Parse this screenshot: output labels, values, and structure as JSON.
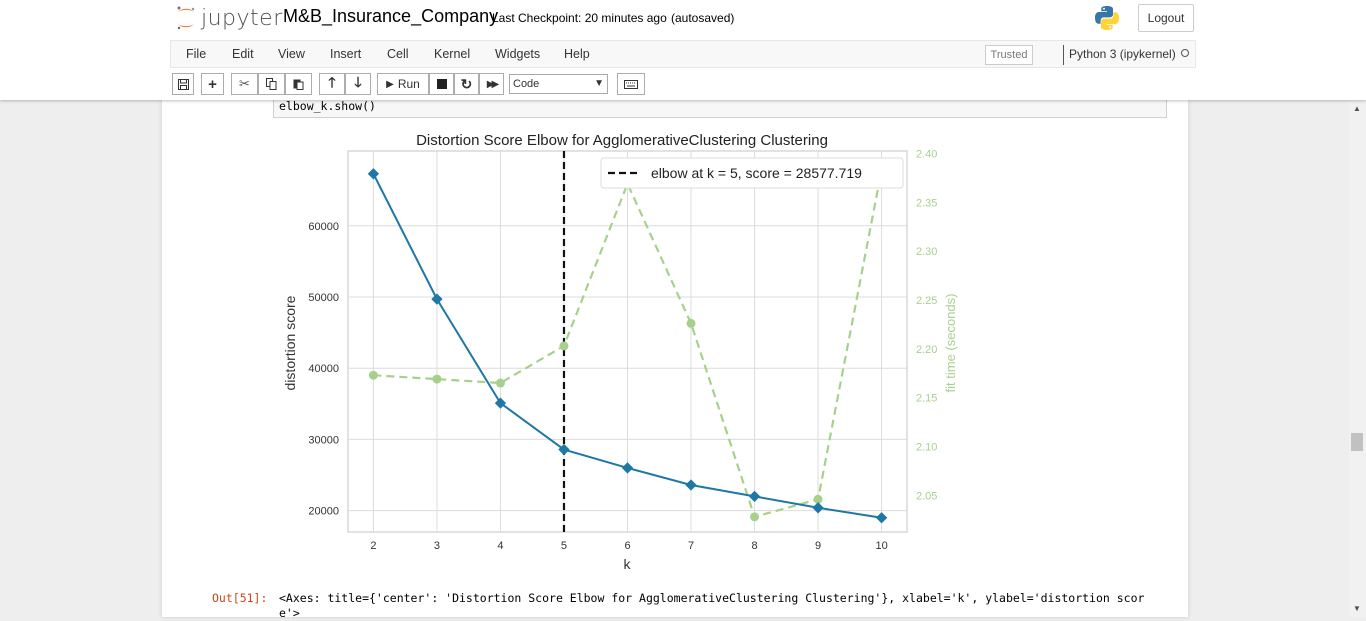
{
  "header": {
    "logo_text": "jupyter",
    "notebook_name": "M&B_Insurance_Company",
    "checkpoint": "Last Checkpoint: 20 minutes ago",
    "autosaved": "(autosaved)",
    "logout_label": "Logout"
  },
  "menubar": {
    "items": [
      "File",
      "Edit",
      "View",
      "Insert",
      "Cell",
      "Kernel",
      "Widgets",
      "Help"
    ],
    "trusted_label": "Trusted",
    "kernel_label": "Python 3 (ipykernel)"
  },
  "toolbar": {
    "run_label": "Run",
    "cell_type": "Code"
  },
  "cell": {
    "code": "elbow_k.show()",
    "out_prompt": "Out[51]:",
    "output_text": "<Axes: title={'center': 'Distortion Score Elbow for AgglomerativeClustering Clustering'}, xlabel='k', ylabel='distortion score'>"
  },
  "chart_data": {
    "type": "line",
    "title": "Distortion Score Elbow for AgglomerativeClustering Clustering",
    "xlabel": "k",
    "ylabel": "distortion score",
    "y2label": "fit time (seconds)",
    "x": [
      2,
      3,
      4,
      5,
      6,
      7,
      8,
      9,
      10
    ],
    "xlim": [
      1.6,
      10.4
    ],
    "ylim": [
      17000,
      70500
    ],
    "y2lim": [
      2.0125,
      2.4025
    ],
    "yticks": [
      "20000",
      "30000",
      "40000",
      "50000",
      "60000"
    ],
    "y2ticks": [
      "2.05",
      "2.10",
      "2.15",
      "2.20",
      "2.25",
      "2.30",
      "2.35",
      "2.40"
    ],
    "series": [
      {
        "values": [
          67300,
          49700,
          35100,
          28577.719,
          26000,
          23600,
          22000,
          20400,
          19000
        ],
        "color": "#1f77a6",
        "axis": "left"
      },
      {
        "values": [
          2.173,
          2.169,
          2.165,
          2.203,
          2.369,
          2.226,
          2.028,
          2.046,
          2.383
        ],
        "color": "#a8d08d",
        "axis": "right",
        "style": "dashed"
      }
    ],
    "elbow": {
      "x": 5,
      "legend": "elbow at k = 5, score = 28577.719"
    },
    "grid": true,
    "legend_position": "top-right"
  }
}
